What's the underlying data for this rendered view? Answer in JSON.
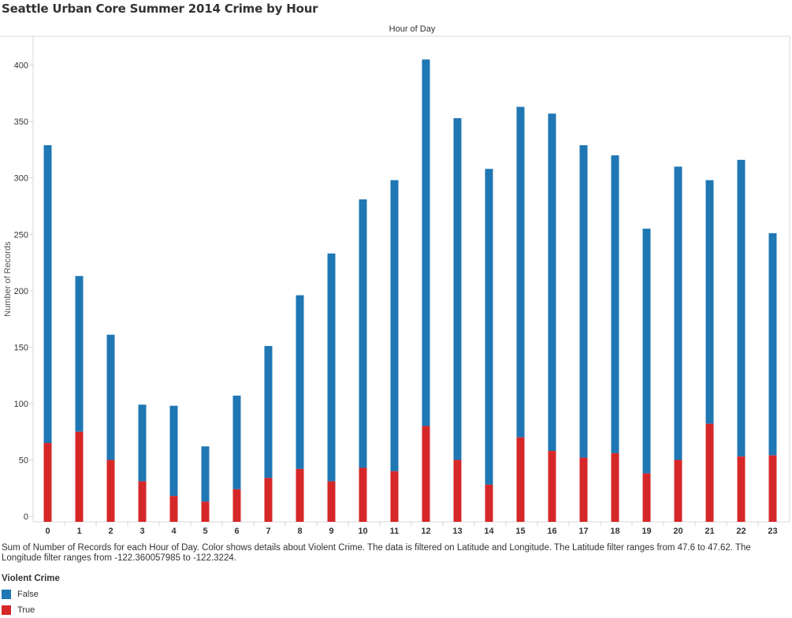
{
  "title": "Seattle Urban Core Summer 2014 Crime by Hour",
  "caption": "Sum of Number of Records for each Hour of Day.  Color shows details about Violent Crime. The data is filtered on Latitude and Longitude. The Latitude filter ranges from 47.6 to 47.62. The Longitude filter ranges from -122.360057985 to -122.3224.",
  "legend": {
    "title": "Violent Crime",
    "items": [
      {
        "label": "False",
        "color": "#1f77b4"
      },
      {
        "label": "True",
        "color": "#d62728"
      }
    ]
  },
  "chart_data": {
    "type": "bar",
    "stacked": true,
    "title": "Seattle Urban Core Summer 2014 Crime by Hour",
    "xlabel": "Hour of Day",
    "ylabel": "Number of Records",
    "categories": [
      "0",
      "1",
      "2",
      "3",
      "4",
      "5",
      "6",
      "7",
      "8",
      "9",
      "10",
      "11",
      "12",
      "13",
      "14",
      "15",
      "16",
      "17",
      "18",
      "19",
      "20",
      "21",
      "22",
      "23"
    ],
    "yticks": [
      0,
      50,
      100,
      150,
      200,
      250,
      300,
      350,
      400
    ],
    "ylim": [
      0,
      420
    ],
    "grid": false,
    "legend_position": "bottom-left",
    "series": [
      {
        "name": "True",
        "color": "#d62728",
        "values": [
          65,
          75,
          50,
          31,
          18,
          13,
          24,
          34,
          42,
          31,
          43,
          40,
          80,
          50,
          28,
          70,
          58,
          52,
          56,
          38,
          50,
          82,
          53,
          54
        ]
      },
      {
        "name": "False",
        "color": "#1f77b4",
        "values": [
          264,
          138,
          111,
          68,
          80,
          49,
          83,
          117,
          154,
          202,
          238,
          258,
          325,
          303,
          280,
          293,
          299,
          277,
          264,
          217,
          260,
          216,
          263,
          197
        ]
      }
    ]
  }
}
